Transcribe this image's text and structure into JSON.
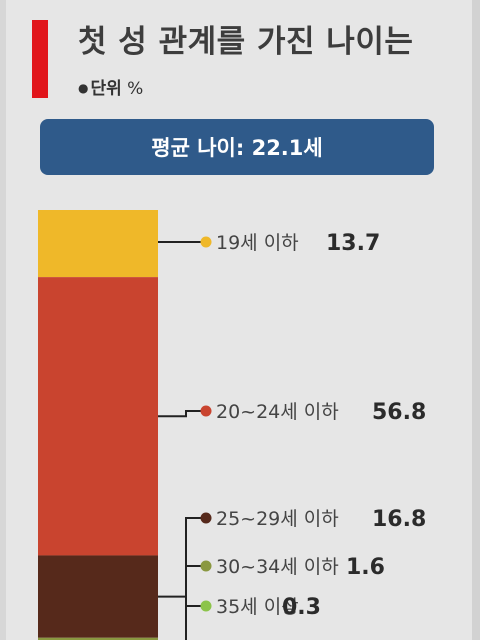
{
  "title": "첫 성 관계를 가진 나이는",
  "unit_label": "단위",
  "unit_symbol": "%",
  "average_text": "평균 나이: 22.1세",
  "colors": {
    "accent": "#e1151b",
    "banner": "#2f5a8a",
    "connector": "#222222"
  },
  "chart_data": {
    "type": "bar",
    "stacked": true,
    "title": "첫 성 관계를 가진 나이는",
    "unit": "%",
    "categories": [
      "19세 이하",
      "20~24세 이하",
      "25~29세 이하",
      "30~34세 이하",
      "35세 이상"
    ],
    "values": [
      13.7,
      56.8,
      16.8,
      1.6,
      0.3
    ],
    "value_labels": [
      "13.7",
      "56.8",
      "16.8",
      "1.6",
      "0.3"
    ],
    "colors": [
      "#efb829",
      "#c9442f",
      "#56291b",
      "#8a9840",
      "#8cc44a"
    ],
    "dot_colors": [
      "#efb829",
      "#c9442f",
      "#56291b",
      "#8a9840",
      "#8cc44a"
    ],
    "legend": "right"
  }
}
